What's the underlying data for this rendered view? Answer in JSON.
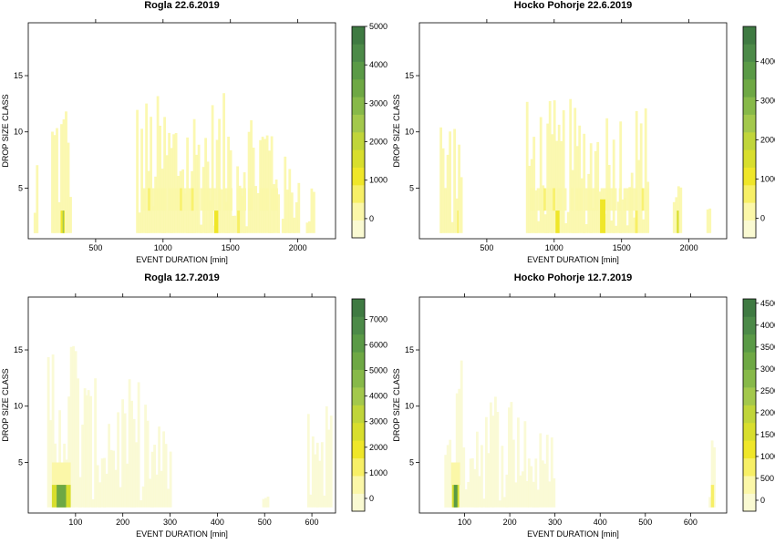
{
  "palette": [
    "#fafad2",
    "#fbf7a8",
    "#f7ef66",
    "#efe629",
    "#d8de2d",
    "#c0d53a",
    "#a3c84c",
    "#87b949",
    "#6ea844",
    "#5a9a46",
    "#4c8a48",
    "#3f7a42"
  ],
  "chart_data": [
    {
      "type": "heatmap",
      "title": "Rogla 22.6.2019",
      "xlabel": "EVENT DURATION [min]",
      "ylabel": "DROP SIZE CLASS",
      "xlim": [
        0,
        2280
      ],
      "ylim": [
        0.5,
        19.7
      ],
      "xticks": [
        500,
        1000,
        1500,
        2000
      ],
      "yticks": [
        5,
        10,
        15
      ],
      "colorbar": {
        "min": -500,
        "max": 5000,
        "ticks": [
          0,
          1000,
          2000,
          3000,
          4000,
          5000
        ]
      },
      "clusters": [
        {
          "x": [
            170,
            320
          ],
          "y_max": 14.5,
          "value": 60
        },
        {
          "x": [
            800,
            1860
          ],
          "y_max": 13.5,
          "value": 80
        },
        {
          "x": [
            1880,
            2000
          ],
          "y_max": 8,
          "value": 40
        },
        {
          "x": [
            2060,
            2120
          ],
          "y_max": 6,
          "value": 30
        },
        {
          "x": [
            40,
            60
          ],
          "y_max": 7.5,
          "value": 30
        },
        {
          "x": [
            820,
            1850
          ],
          "y_range": [
            3,
            5
          ],
          "value": 300
        }
      ],
      "hotspots": [
        {
          "x": [
            240,
            270
          ],
          "y": [
            1,
            3
          ],
          "value": 1100
        },
        {
          "x": [
            255,
            265
          ],
          "y": [
            1,
            3
          ],
          "value": 2400
        },
        {
          "x": [
            1380,
            1410
          ],
          "y": [
            1,
            3
          ],
          "value": 900
        },
        {
          "x": [
            1550,
            1570
          ],
          "y": [
            1,
            3
          ],
          "value": 500
        }
      ]
    },
    {
      "type": "heatmap",
      "title": "Hocko Pohorje 22.6.2019",
      "xlabel": "EVENT DURATION [min]",
      "ylabel": "DROP SIZE CLASS",
      "xlim": [
        0,
        2280
      ],
      "ylim": [
        0.5,
        19.7
      ],
      "xticks": [
        500,
        1000,
        1500,
        2000
      ],
      "yticks": [
        5,
        10,
        15
      ],
      "colorbar": {
        "min": -500,
        "max": 4900,
        "ticks": [
          0,
          1000,
          2000,
          3000,
          4000
        ]
      },
      "clusters": [
        {
          "x": [
            150,
            310
          ],
          "y_max": 12.5,
          "value": 50
        },
        {
          "x": [
            790,
            1700
          ],
          "y_max": 13,
          "value": 70
        },
        {
          "x": [
            1880,
            1940
          ],
          "y_max": 9,
          "value": 40
        },
        {
          "x": [
            2130,
            2160
          ],
          "y_max": 4.5,
          "value": 30
        },
        {
          "x": [
            820,
            1700
          ],
          "y_range": [
            3,
            5
          ],
          "value": 280
        }
      ],
      "hotspots": [
        {
          "x": [
            280,
            290
          ],
          "y": [
            1,
            3
          ],
          "value": 800
        },
        {
          "x": [
            1010,
            1040
          ],
          "y": [
            1,
            3
          ],
          "value": 900
        },
        {
          "x": [
            1340,
            1380
          ],
          "y": [
            1,
            4
          ],
          "value": 1000
        },
        {
          "x": [
            1600,
            1620
          ],
          "y": [
            1,
            3
          ],
          "value": 700
        },
        {
          "x": [
            1910,
            1925
          ],
          "y": [
            1,
            3
          ],
          "value": 1400
        }
      ]
    },
    {
      "type": "heatmap",
      "title": "Rogla 12.7.2019",
      "xlabel": "EVENT DURATION [min]",
      "ylabel": "DROP SIZE CLASS",
      "xlim": [
        0,
        650
      ],
      "ylim": [
        0.5,
        19.7
      ],
      "xticks": [
        100,
        200,
        300,
        400,
        500,
        600
      ],
      "yticks": [
        5,
        10,
        15
      ],
      "colorbar": {
        "min": -500,
        "max": 7800,
        "ticks": [
          0,
          1000,
          2000,
          3000,
          4000,
          5000,
          6000,
          7000
        ]
      },
      "clusters": [
        {
          "x": [
            40,
            120
          ],
          "y_max": 18,
          "value": 90
        },
        {
          "x": [
            120,
            255
          ],
          "y_max": 12.5,
          "value": 70
        },
        {
          "x": [
            255,
            300
          ],
          "y_max": 8.5,
          "value": 40
        },
        {
          "x": [
            495,
            505
          ],
          "y_max": 2,
          "value": 20
        },
        {
          "x": [
            590,
            640
          ],
          "y_max": 11.5,
          "value": 60
        }
      ],
      "hotspots": [
        {
          "x": [
            50,
            90
          ],
          "y": [
            3,
            5
          ],
          "value": 700
        },
        {
          "x": [
            50,
            90
          ],
          "y": [
            1,
            3
          ],
          "value": 2500
        },
        {
          "x": [
            60,
            80
          ],
          "y": [
            1,
            3
          ],
          "value": 5200
        }
      ]
    },
    {
      "type": "heatmap",
      "title": "Hocko Pohorje 12.7.2019",
      "xlabel": "EVENT DURATION [min]",
      "ylabel": "DROP SIZE CLASS",
      "xlim": [
        0,
        680
      ],
      "ylim": [
        0.5,
        19.7
      ],
      "xticks": [
        100,
        200,
        300,
        400,
        500,
        600
      ],
      "yticks": [
        5,
        10,
        15
      ],
      "colorbar": {
        "min": -250,
        "max": 4600,
        "ticks": [
          0,
          500,
          1000,
          1500,
          2000,
          2500,
          3000,
          3500,
          4000,
          4500
        ]
      },
      "clusters": [
        {
          "x": [
            55,
            115
          ],
          "y_max": 14.5,
          "value": 80
        },
        {
          "x": [
            115,
            240
          ],
          "y_max": 12,
          "value": 50
        },
        {
          "x": [
            240,
            300
          ],
          "y_max": 8,
          "value": 40
        },
        {
          "x": [
            640,
            655
          ],
          "y_max": 8.5,
          "value": 30
        }
      ],
      "hotspots": [
        {
          "x": [
            70,
            90
          ],
          "y": [
            3,
            5
          ],
          "value": 500
        },
        {
          "x": [
            72,
            88
          ],
          "y": [
            1,
            3
          ],
          "value": 1500
        },
        {
          "x": [
            76,
            84
          ],
          "y": [
            1,
            3
          ],
          "value": 3500
        },
        {
          "x": [
            645,
            652
          ],
          "y": [
            1,
            3
          ],
          "value": 800
        }
      ]
    }
  ]
}
